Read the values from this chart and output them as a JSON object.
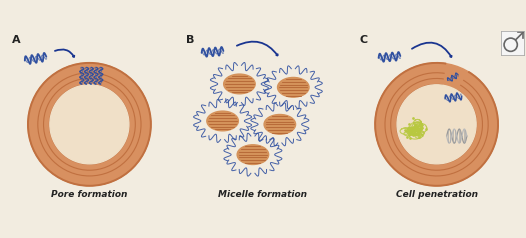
{
  "bg_color": "#f2ece0",
  "labels": [
    "A",
    "B",
    "C"
  ],
  "captions": [
    "Pore formation",
    "Micelle formation",
    "Cell penetration"
  ],
  "caption_fontsize": 6.5,
  "label_fontsize": 8,
  "mem_dark": "#c07040",
  "mem_mid": "#d89060",
  "mem_light": "#e8b888",
  "mem_inner_bg": "#f0e0c8",
  "helix_color": "#3050a0",
  "helix_color2": "#5070c0",
  "micelle_core": "#d4925a",
  "micelle_line": "#b06030",
  "arrow_color": "#1a3590",
  "protein_color": "#b8c840",
  "protein_dark": "#808820",
  "dna_color1": "#aaaaaa",
  "dna_color2": "#cccccc",
  "icon_bg": "#f5f0e8"
}
